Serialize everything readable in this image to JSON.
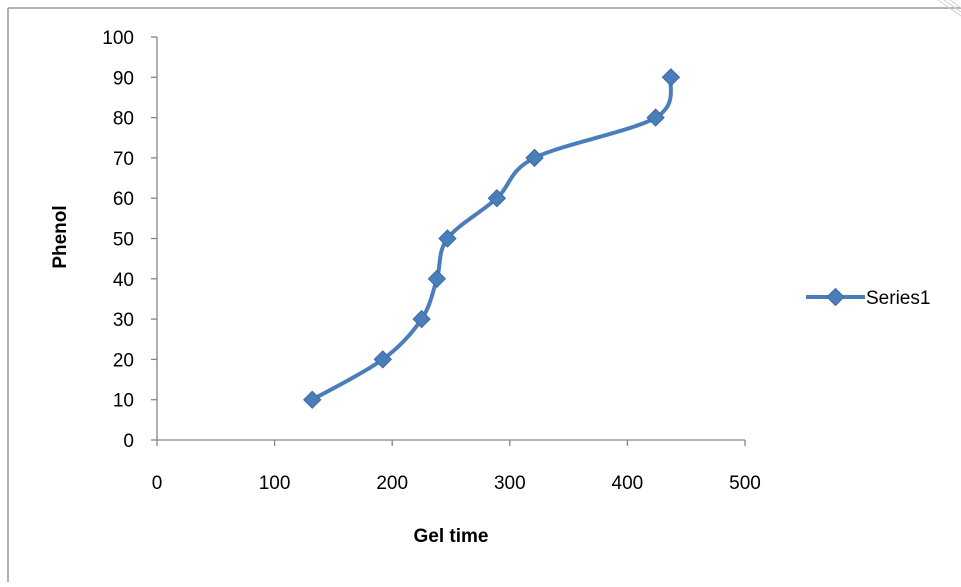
{
  "chart_data": {
    "type": "line",
    "title": "",
    "xlabel": "Gel time",
    "ylabel": "Phenol",
    "xlim": [
      0,
      500
    ],
    "ylim": [
      0,
      100
    ],
    "x_ticks": [
      0,
      100,
      200,
      300,
      400,
      500
    ],
    "y_ticks": [
      0,
      10,
      20,
      30,
      40,
      50,
      60,
      70,
      80,
      90,
      100
    ],
    "grid": false,
    "smooth": true,
    "legend_position": "right",
    "series": [
      {
        "name": "Series1",
        "color": "#4a7ebb",
        "marker": "diamond",
        "points": [
          {
            "x": 132,
            "y": 10
          },
          {
            "x": 192,
            "y": 20
          },
          {
            "x": 225,
            "y": 30
          },
          {
            "x": 238,
            "y": 40
          },
          {
            "x": 247,
            "y": 50
          },
          {
            "x": 289,
            "y": 60
          },
          {
            "x": 321,
            "y": 70
          },
          {
            "x": 424,
            "y": 80
          },
          {
            "x": 437,
            "y": 90
          }
        ]
      }
    ]
  }
}
